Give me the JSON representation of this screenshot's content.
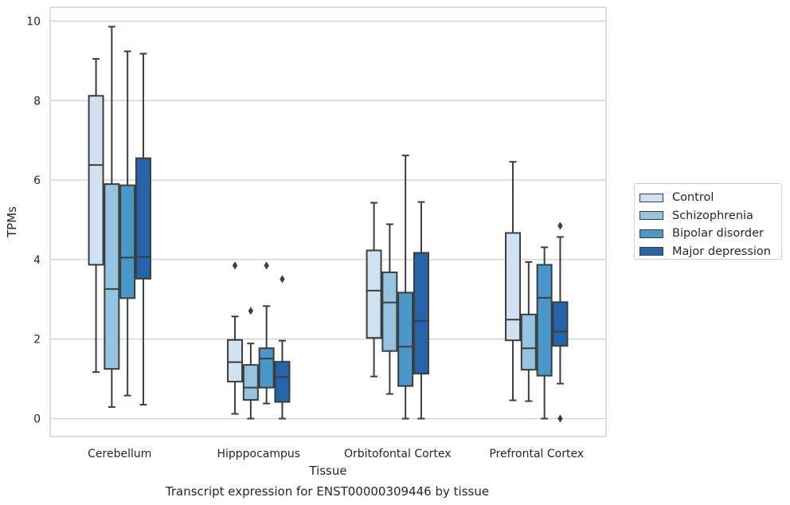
{
  "chart_data": {
    "type": "box",
    "title": "Transcript expression for ENST00000309446 by tissue",
    "xlabel": "Tissue",
    "ylabel": "TPMs",
    "ylim": [
      -0.45,
      10.35
    ],
    "yticks": [
      "0",
      "2",
      "4",
      "6",
      "8",
      "10"
    ],
    "grid": "horizontal",
    "legend_position": "right",
    "categories": [
      "Cerebellum",
      "Hipppocampus",
      "Orbitofontal Cortex",
      "Prefrontal Cortex"
    ],
    "series": [
      {
        "name": "Control",
        "color": "#d0e1f2",
        "boxes": [
          {
            "whislo": 1.17,
            "q1": 3.87,
            "med": 6.38,
            "q3": 8.12,
            "whishi": 9.05,
            "fliers": []
          },
          {
            "whislo": 0.12,
            "q1": 0.93,
            "med": 1.42,
            "q3": 1.98,
            "whishi": 2.57,
            "fliers": [
              3.85
            ]
          },
          {
            "whislo": 1.06,
            "q1": 2.03,
            "med": 3.22,
            "q3": 4.23,
            "whishi": 5.43,
            "fliers": []
          },
          {
            "whislo": 0.46,
            "q1": 1.97,
            "med": 2.49,
            "q3": 4.67,
            "whishi": 6.46,
            "fliers": []
          }
        ]
      },
      {
        "name": "Schizophrenia",
        "color": "#94c4df",
        "boxes": [
          {
            "whislo": 0.29,
            "q1": 1.25,
            "med": 3.26,
            "q3": 5.9,
            "whishi": 9.86,
            "fliers": []
          },
          {
            "whislo": 0.0,
            "q1": 0.47,
            "med": 0.78,
            "q3": 1.35,
            "whishi": 1.89,
            "fliers": [
              2.71
            ]
          },
          {
            "whislo": 0.62,
            "q1": 1.7,
            "med": 2.92,
            "q3": 3.68,
            "whishi": 4.89,
            "fliers": []
          },
          {
            "whislo": 0.44,
            "q1": 1.23,
            "med": 1.77,
            "q3": 2.62,
            "whishi": 3.94,
            "fliers": []
          }
        ]
      },
      {
        "name": "Bipolar disorder",
        "color": "#4a98c9",
        "boxes": [
          {
            "whislo": 0.58,
            "q1": 3.03,
            "med": 4.05,
            "q3": 5.87,
            "whishi": 9.24,
            "fliers": []
          },
          {
            "whislo": 0.38,
            "q1": 0.78,
            "med": 1.51,
            "q3": 1.77,
            "whishi": 2.83,
            "fliers": [
              3.85
            ]
          },
          {
            "whislo": 0.0,
            "q1": 0.82,
            "med": 1.81,
            "q3": 3.17,
            "whishi": 6.62,
            "fliers": []
          },
          {
            "whislo": 0.0,
            "q1": 1.08,
            "med": 3.04,
            "q3": 3.87,
            "whishi": 4.31,
            "fliers": []
          }
        ]
      },
      {
        "name": "Major depression",
        "color": "#2464a8",
        "boxes": [
          {
            "whislo": 0.35,
            "q1": 3.52,
            "med": 4.07,
            "q3": 6.55,
            "whishi": 9.18,
            "fliers": []
          },
          {
            "whislo": 0.0,
            "q1": 0.42,
            "med": 1.05,
            "q3": 1.43,
            "whishi": 1.96,
            "fliers": [
              3.51
            ]
          },
          {
            "whislo": 0.0,
            "q1": 1.13,
            "med": 2.46,
            "q3": 4.17,
            "whishi": 5.45,
            "fliers": []
          },
          {
            "whislo": 0.88,
            "q1": 1.83,
            "med": 2.19,
            "q3": 2.93,
            "whishi": 4.57,
            "fliers": [
              4.85,
              0.0
            ]
          }
        ]
      }
    ]
  }
}
